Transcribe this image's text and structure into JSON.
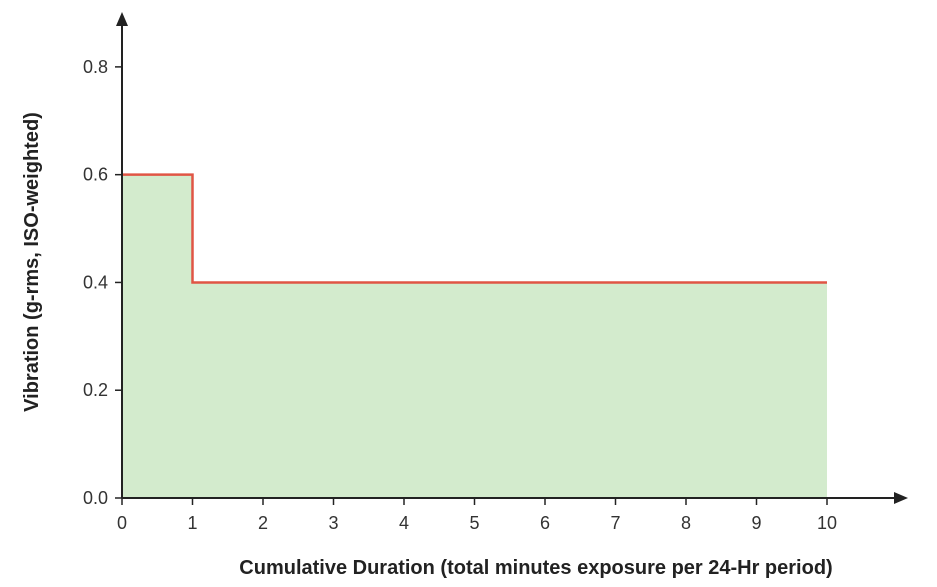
{
  "chart_data": {
    "type": "area",
    "title": "",
    "xlabel": "Cumulative Duration (total minutes exposure per 24-Hr period)",
    "ylabel": "Vibration (g-rms, ISO-weighted)",
    "xlim": [
      0,
      10
    ],
    "ylim": [
      0,
      0.9
    ],
    "x_ticks": [
      "0",
      "1",
      "2",
      "3",
      "4",
      "5",
      "6",
      "7",
      "8",
      "9",
      "10"
    ],
    "y_ticks": [
      "0.0",
      "0.2",
      "0.4",
      "0.6",
      "0.8"
    ],
    "grid": false,
    "legend": "none",
    "series": [
      {
        "step_points": [
          [
            0,
            0.6
          ],
          [
            1,
            0.6
          ],
          [
            1,
            0.4
          ],
          [
            10,
            0.4
          ]
        ],
        "line_color": "#e05545",
        "fill_color": "#d3ebcd"
      }
    ]
  }
}
